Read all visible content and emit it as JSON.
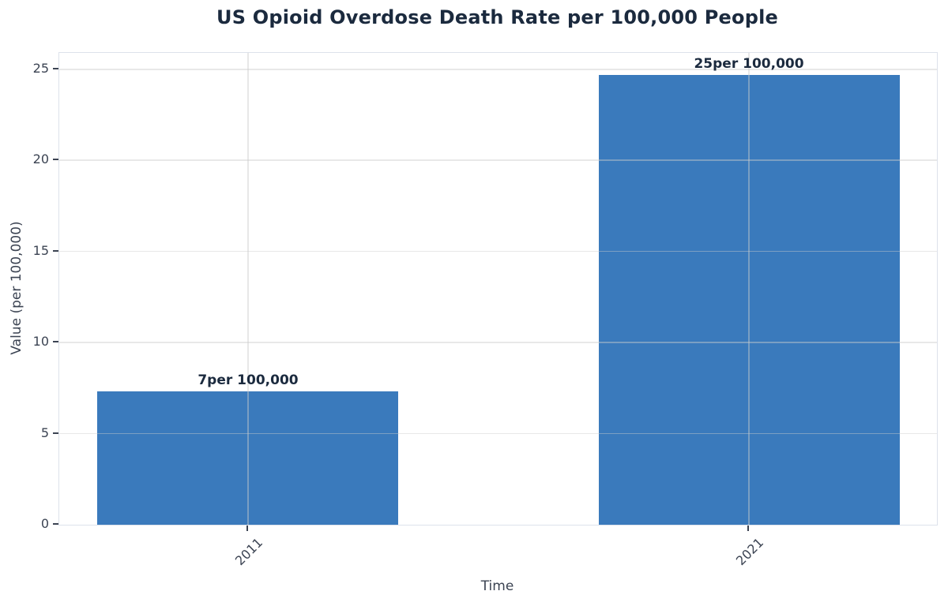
{
  "chart_data": {
    "type": "bar",
    "title": "US Opioid Overdose Death Rate per 100,000 People",
    "xlabel": "Time",
    "ylabel": "Value (per 100,000)",
    "categories": [
      "2011",
      "2021"
    ],
    "values": [
      7.3,
      24.7
    ],
    "bar_labels": [
      "7per 100,000",
      "25per 100,000"
    ],
    "yticks": [
      0,
      5,
      10,
      15,
      20,
      25
    ],
    "ylim": [
      0,
      25.9
    ],
    "grid": true,
    "legend": "none",
    "colors": {
      "bar": "#3a7abc",
      "title_text": "#1b2a3e",
      "axis_text": "#3b4352",
      "spine": "#dde2eb",
      "grid_rgba": "rgba(203,203,203,0.45)",
      "tick_mark": "#3b4352",
      "background": "#ffffff"
    }
  }
}
